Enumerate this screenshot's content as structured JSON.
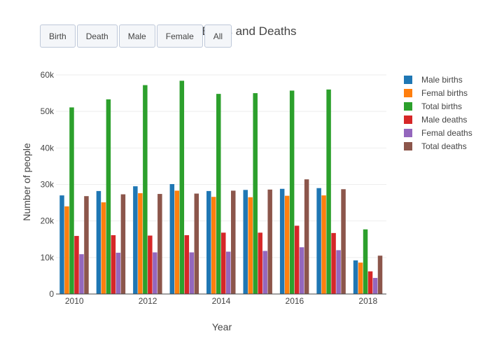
{
  "buttons": [
    "Birth",
    "Death",
    "Male",
    "Female",
    "All"
  ],
  "chart_data": {
    "type": "bar",
    "title": "Births and Deaths",
    "xlabel": "Year",
    "ylabel": "Number of people",
    "categories": [
      2010,
      2011,
      2012,
      2013,
      2014,
      2015,
      2016,
      2017,
      2018
    ],
    "x_tick_labels": [
      "2010",
      "2012",
      "2014",
      "2016",
      "2018"
    ],
    "y_tick_labels": [
      "0",
      "10k",
      "20k",
      "30k",
      "40k",
      "50k",
      "60k"
    ],
    "ylim": [
      0,
      60000
    ],
    "grid": true,
    "legend_position": "right",
    "series": [
      {
        "name": "Male births",
        "color": "#1f77b4",
        "values": [
          27000,
          28200,
          29500,
          30100,
          28200,
          28500,
          28800,
          29000,
          9200
        ]
      },
      {
        "name": "Femal births",
        "color": "#ff7f0e",
        "values": [
          24000,
          25100,
          27600,
          28300,
          26600,
          26500,
          26900,
          27000,
          8600
        ]
      },
      {
        "name": "Total births",
        "color": "#2ca02c",
        "values": [
          51100,
          53300,
          57200,
          58400,
          54800,
          55000,
          55700,
          56000,
          17700
        ]
      },
      {
        "name": "Male deaths",
        "color": "#d62728",
        "values": [
          15900,
          16100,
          16000,
          16100,
          16800,
          16800,
          18700,
          16700,
          6200
        ]
      },
      {
        "name": "Femal deaths",
        "color": "#9467bd",
        "values": [
          10900,
          11300,
          11400,
          11400,
          11600,
          11800,
          12800,
          12000,
          4400
        ]
      },
      {
        "name": "Total deaths",
        "color": "#8c564b",
        "values": [
          26800,
          27300,
          27400,
          27500,
          28300,
          28600,
          31400,
          28700,
          10500
        ]
      }
    ]
  }
}
